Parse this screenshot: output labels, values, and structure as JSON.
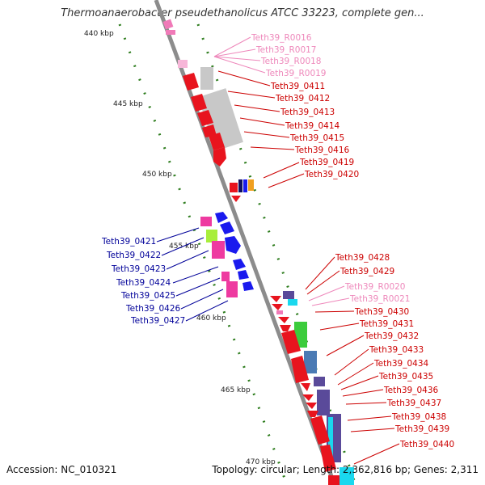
{
  "title": "Thermoanaerobacter pseudethanolicus ATCC 33223, complete gen...",
  "footer": {
    "accession": "Accession: NC_010321",
    "summary": "Topology: circular; Length: 2,362,816 bp; Genes: 2,311"
  },
  "colors": {
    "axis": "#8c8c8c",
    "tick": "#2e7d1e",
    "red": "#e8141e",
    "pink": "#f07ab8",
    "grey": "#c8c8c8",
    "blue": "#1a1aee",
    "magenta": "#ee3aa0",
    "lime": "#a8ee3c",
    "green": "#3ccc3c",
    "steel": "#4a7ab4",
    "purple": "#5a4a9a",
    "cyan": "#1ad8ee",
    "navy": "#101060",
    "orange": "#f0a020",
    "label_red": "#cc0000",
    "label_pink": "#ee88bb",
    "label_blue": "#000099"
  },
  "kbp_ticks": [
    "440 kbp",
    "445 kbp",
    "450 kbp",
    "455 kbp",
    "460 kbp",
    "465 kbp",
    "470 kbp"
  ],
  "right_labels": [
    {
      "text": "Teth39_R0016",
      "color": "pink"
    },
    {
      "text": "Teth39_R0017",
      "color": "pink"
    },
    {
      "text": "Teth39_R0018",
      "color": "pink"
    },
    {
      "text": "Teth39_R0019",
      "color": "pink"
    },
    {
      "text": "Teth39_0411",
      "color": "red"
    },
    {
      "text": "Teth39_0412",
      "color": "red"
    },
    {
      "text": "Teth39_0413",
      "color": "red"
    },
    {
      "text": "Teth39_0414",
      "color": "red"
    },
    {
      "text": "Teth39_0415",
      "color": "red"
    },
    {
      "text": "Teth39_0416",
      "color": "red"
    },
    {
      "text": "Teth39_0419",
      "color": "red"
    },
    {
      "text": "Teth39_0420",
      "color": "red"
    },
    {
      "text": "Teth39_0428",
      "color": "red"
    },
    {
      "text": "Teth39_0429",
      "color": "red"
    },
    {
      "text": "Teth39_R0020",
      "color": "pink"
    },
    {
      "text": "Teth39_R0021",
      "color": "pink"
    },
    {
      "text": "Teth39_0430",
      "color": "red"
    },
    {
      "text": "Teth39_0431",
      "color": "red"
    },
    {
      "text": "Teth39_0432",
      "color": "red"
    },
    {
      "text": "Teth39_0433",
      "color": "red"
    },
    {
      "text": "Teth39_0434",
      "color": "red"
    },
    {
      "text": "Teth39_0435",
      "color": "red"
    },
    {
      "text": "Teth39_0436",
      "color": "red"
    },
    {
      "text": "Teth39_0437",
      "color": "red"
    },
    {
      "text": "Teth39_0438",
      "color": "red"
    },
    {
      "text": "Teth39_0439",
      "color": "red"
    },
    {
      "text": "Teth39_0440",
      "color": "red"
    }
  ],
  "left_labels": [
    {
      "text": "Teth39_0421",
      "color": "blue"
    },
    {
      "text": "Teth39_0422",
      "color": "blue"
    },
    {
      "text": "Teth39_0423",
      "color": "blue"
    },
    {
      "text": "Teth39_0424",
      "color": "blue"
    },
    {
      "text": "Teth39_0425",
      "color": "blue"
    },
    {
      "text": "Teth39_0426",
      "color": "blue"
    },
    {
      "text": "Teth39_0427",
      "color": "blue"
    }
  ]
}
